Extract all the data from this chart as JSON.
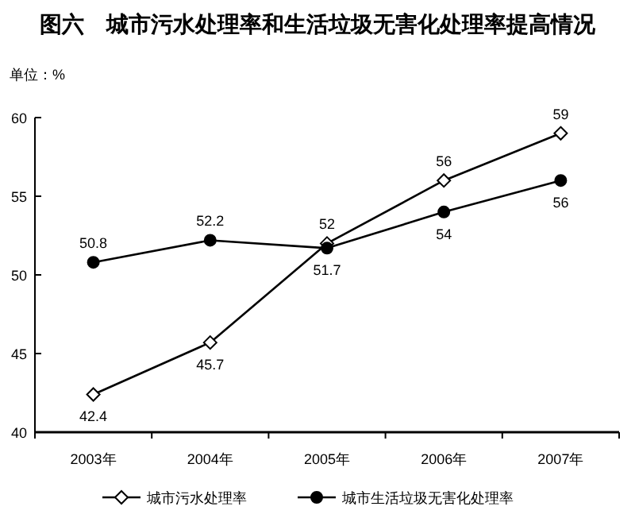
{
  "chart_data": {
    "type": "line",
    "title": "图六　城市污水处理率和生活垃圾无害化处理率提高情况",
    "subtitle": "单位：%",
    "categories": [
      "2003年",
      "2004年",
      "2005年",
      "2006年",
      "2007年"
    ],
    "series": [
      {
        "name": "城市污水处理率",
        "color": "#000000",
        "marker": "diamond",
        "values": [
          42.4,
          45.7,
          52,
          56,
          59
        ]
      },
      {
        "name": "城市生活垃圾无害化处理率",
        "color": "#000000",
        "marker": "circle",
        "values": [
          50.8,
          52.2,
          51.7,
          54,
          56
        ]
      }
    ],
    "ylim": [
      40,
      60
    ],
    "yticks": [
      40,
      45,
      50,
      55,
      60
    ],
    "data_labels": true,
    "legend": "bottom",
    "grid": false,
    "line_style": "solid"
  }
}
